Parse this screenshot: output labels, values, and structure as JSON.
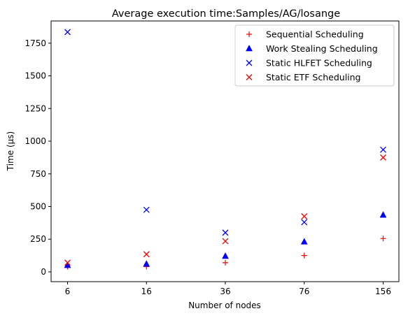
{
  "chart_data": {
    "type": "scatter",
    "title": "Average execution time:Samples/AG/losange",
    "xlabel": "Number of nodes",
    "ylabel": "Time (µs)",
    "categories": [
      "6",
      "16",
      "36",
      "76",
      "156"
    ],
    "ylim": [
      -75,
      1920
    ],
    "yticks": [
      0,
      250,
      500,
      750,
      1000,
      1250,
      1500,
      1750
    ],
    "grid": false,
    "legend_position": "top-right",
    "series": [
      {
        "name": "Sequential Scheduling",
        "marker": "plus",
        "color": "#ff0000",
        "values": [
          40,
          40,
          70,
          125,
          255
        ]
      },
      {
        "name": "Work Stealing Scheduling",
        "marker": "triangle",
        "color": "#0000ff",
        "values": [
          50,
          60,
          120,
          230,
          435
        ]
      },
      {
        "name": "Static HLFET Scheduling",
        "marker": "x",
        "color": "#0000ff",
        "values": [
          1835,
          475,
          300,
          380,
          935
        ]
      },
      {
        "name": "Static ETF Scheduling",
        "marker": "x",
        "color": "#ff0000",
        "values": [
          70,
          135,
          235,
          425,
          875
        ]
      }
    ]
  }
}
